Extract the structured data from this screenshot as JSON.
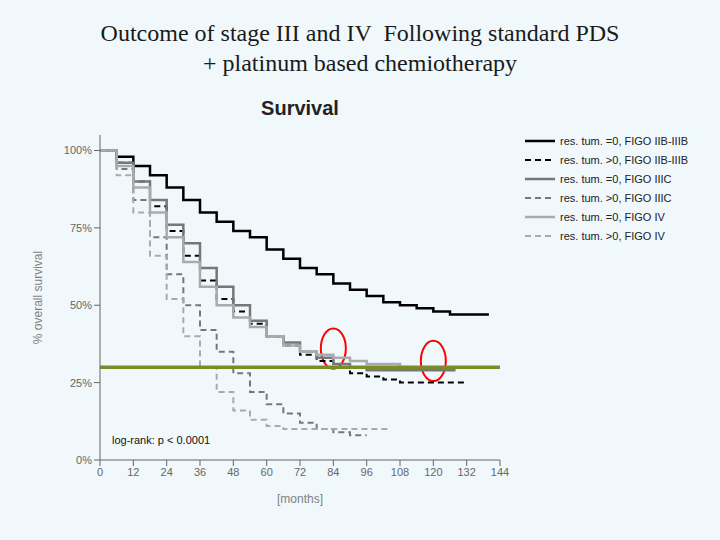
{
  "chart_data": {
    "type": "step",
    "title": [
      "Outcome of stage III and IV  Following standard PDS",
      "+ platinum based chemiotherapy"
    ],
    "subtitle": "Survival",
    "xlabel": "[months]",
    "ylabel": "% overall survival",
    "annotations": [
      "log-rank: p < 0.0001"
    ],
    "xlim": [
      0,
      144
    ],
    "xticks": [
      0,
      12,
      24,
      36,
      48,
      60,
      72,
      84,
      96,
      108,
      120,
      132,
      144
    ],
    "ylim": [
      0,
      105
    ],
    "yticks": [
      {
        "value": 0,
        "label": "0%"
      },
      {
        "value": 25,
        "label": "25%"
      },
      {
        "value": 50,
        "label": "50%"
      },
      {
        "value": 75,
        "label": "75%"
      },
      {
        "value": 100,
        "label": "100%"
      }
    ],
    "grid": false,
    "legend": "right",
    "series": [
      {
        "name": "res. tum. =0, FIGO IIB-IIIB",
        "color": "#000000",
        "line_style": "solid",
        "x": [
          0,
          6,
          12,
          18,
          24,
          30,
          36,
          42,
          48,
          54,
          60,
          66,
          72,
          78,
          84,
          90,
          96,
          102,
          108,
          114,
          120,
          126,
          132,
          140
        ],
        "values": [
          100,
          98,
          95,
          92,
          88,
          84,
          80,
          77,
          74,
          72,
          68,
          65,
          62,
          60,
          57,
          55,
          53,
          51,
          50,
          49,
          48,
          47,
          47,
          47
        ]
      },
      {
        "name": "res. tum. >0, FIGO IIB-IIIB",
        "color": "#000000",
        "line_style": "dashed",
        "x": [
          0,
          6,
          12,
          18,
          24,
          30,
          36,
          42,
          48,
          54,
          60,
          66,
          72,
          78,
          84,
          90,
          96,
          102,
          108,
          120,
          132
        ],
        "values": [
          100,
          96,
          90,
          82,
          74,
          66,
          58,
          52,
          48,
          44,
          40,
          37,
          34,
          32,
          30,
          28,
          27,
          26,
          25,
          25,
          25
        ]
      },
      {
        "name": "res. tum. =0, FIGO IIIC",
        "color": "#777777",
        "line_style": "solid",
        "x": [
          0,
          6,
          12,
          18,
          24,
          30,
          36,
          42,
          48,
          54,
          60,
          66,
          72,
          78,
          84,
          90,
          96,
          108,
          120,
          128
        ],
        "values": [
          100,
          96,
          90,
          84,
          76,
          70,
          62,
          56,
          50,
          45,
          40,
          38,
          35,
          33,
          31,
          30,
          29,
          29,
          29,
          29
        ]
      },
      {
        "name": "res. tum. >0, FIGO IIIC",
        "color": "#777777",
        "line_style": "dashed",
        "x": [
          0,
          6,
          12,
          18,
          24,
          30,
          36,
          42,
          48,
          54,
          60,
          66,
          72,
          78,
          84,
          90,
          96
        ],
        "values": [
          100,
          94,
          84,
          72,
          60,
          50,
          42,
          35,
          28,
          22,
          18,
          15,
          12,
          10,
          9,
          8,
          8
        ]
      },
      {
        "name": "res. tum. =0, FIGO IV",
        "color": "#aaaaaa",
        "line_style": "solid",
        "x": [
          0,
          6,
          12,
          18,
          24,
          30,
          36,
          42,
          48,
          54,
          60,
          66,
          72,
          78,
          84,
          90,
          96,
          108,
          120,
          128
        ],
        "values": [
          100,
          95,
          88,
          80,
          72,
          64,
          56,
          50,
          46,
          43,
          40,
          37,
          35,
          34,
          33,
          32,
          31,
          30,
          30,
          30
        ]
      },
      {
        "name": "res. tum. >0, FIGO IV",
        "color": "#aaaaaa",
        "line_style": "dashed",
        "x": [
          0,
          6,
          12,
          18,
          24,
          30,
          36,
          42,
          48,
          54,
          60,
          66,
          72,
          78,
          84,
          90,
          96,
          104
        ],
        "values": [
          100,
          92,
          80,
          66,
          52,
          40,
          30,
          22,
          16,
          13,
          11,
          10,
          10,
          10,
          10,
          10,
          10,
          10
        ]
      }
    ],
    "reference_lines": [
      {
        "y": 30,
        "color": "#7a8b2a"
      }
    ],
    "ellipses": [
      {
        "x": 84,
        "y": 36,
        "width": 9,
        "height": 13,
        "color": "red"
      },
      {
        "x": 120,
        "y": 32,
        "width": 9,
        "height": 13,
        "color": "red"
      }
    ]
  }
}
